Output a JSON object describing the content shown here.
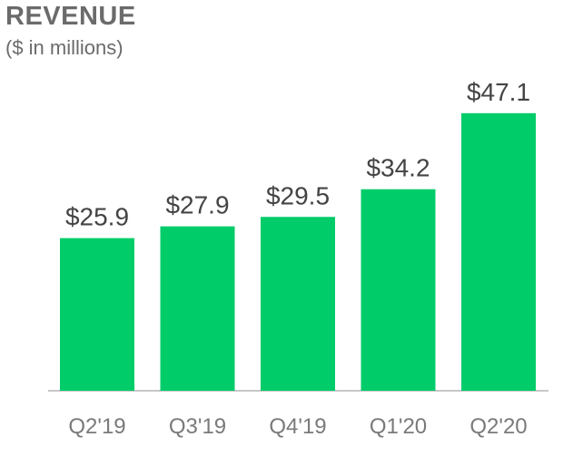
{
  "chart_data": {
    "type": "bar",
    "title": "REVENUE",
    "subtitle": "($ in millions)",
    "categories": [
      "Q2'19",
      "Q3'19",
      "Q4'19",
      "Q1'20",
      "Q2'20"
    ],
    "values": [
      25.9,
      27.9,
      29.5,
      34.2,
      47.1
    ],
    "value_labels": [
      "$25.9",
      "$27.9",
      "$29.5",
      "$34.2",
      "$47.1"
    ],
    "ylim": [
      0,
      50
    ],
    "grid": false,
    "bar_color": "#00cc6a"
  }
}
